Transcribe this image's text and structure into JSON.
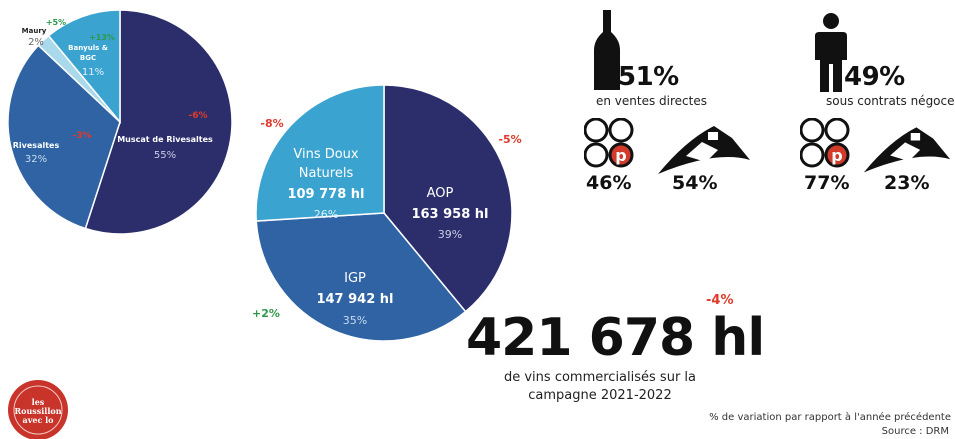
{
  "colors": {
    "navy": "#2b2e6b",
    "blue": "#2f63a3",
    "cyan": "#3ba3d0",
    "light": "#a9d9ea",
    "red": "#e03a2a",
    "green": "#2c9a4a"
  },
  "chart_data": [
    {
      "type": "pie",
      "slices": [
        {
          "label": "Muscat de Rivesaltes",
          "percent": "55%",
          "value": 55,
          "variation": "-6%",
          "color": "#2b2e6b"
        },
        {
          "label": "Rivesaltes",
          "percent": "32%",
          "value": 32,
          "variation": "-3%",
          "color": "#2f63a3"
        },
        {
          "label": "Maury",
          "percent": "2%",
          "value": 2,
          "variation": "+5%",
          "color": "#a9d9ea"
        },
        {
          "label": "Banyuls & BGC",
          "percent": "11%",
          "value": 11,
          "variation": "+13%",
          "color": "#3ba3d0"
        }
      ]
    },
    {
      "type": "pie",
      "slices": [
        {
          "label": "AOP",
          "volume": "163 958 hl",
          "percent": "39%",
          "value": 39,
          "variation": "-5%",
          "color": "#2b2e6b"
        },
        {
          "label": "IGP",
          "volume": "147 942 hl",
          "percent": "35%",
          "value": 35,
          "variation": "+2%",
          "color": "#2f63a3"
        },
        {
          "label": "Vins Doux Naturels",
          "volume": "109 778 hl",
          "percent": "26%",
          "value": 26,
          "variation": "-8%",
          "color": "#3ba3d0"
        }
      ]
    }
  ],
  "sales": {
    "direct": {
      "percent": "51%",
      "label": "en ventes directes",
      "coop": "46%",
      "estate": "54%"
    },
    "negoce": {
      "percent": "49%",
      "label": "sous contrats négoce",
      "coop": "77%",
      "estate": "23%"
    }
  },
  "total": {
    "value": "421 678 hl",
    "variation": "-4%",
    "line1": "de vins commercialisés sur la",
    "line2": "campagne 2021-2022"
  },
  "footer": {
    "note": "% de variation par rapport à l'année précédente",
    "source": "Source : DRM"
  },
  "logo": {
    "text": "les Roussillon avec lo"
  }
}
